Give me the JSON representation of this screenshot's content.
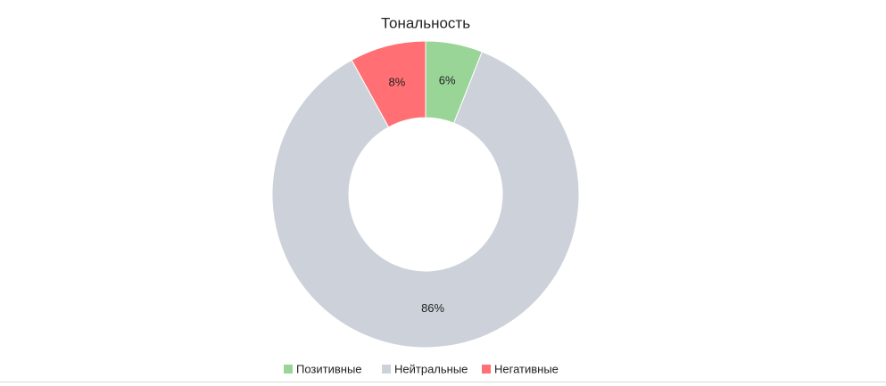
{
  "chart_data": {
    "type": "donut",
    "title": "Тональность",
    "categories": [
      "Позитивные",
      "Нейтральные",
      "Негативные"
    ],
    "values": [
      6,
      86,
      8
    ],
    "value_labels": [
      "6%",
      "86%",
      "8%"
    ],
    "colors": [
      "#98d597",
      "#cdd2da",
      "#ff6f73"
    ]
  }
}
